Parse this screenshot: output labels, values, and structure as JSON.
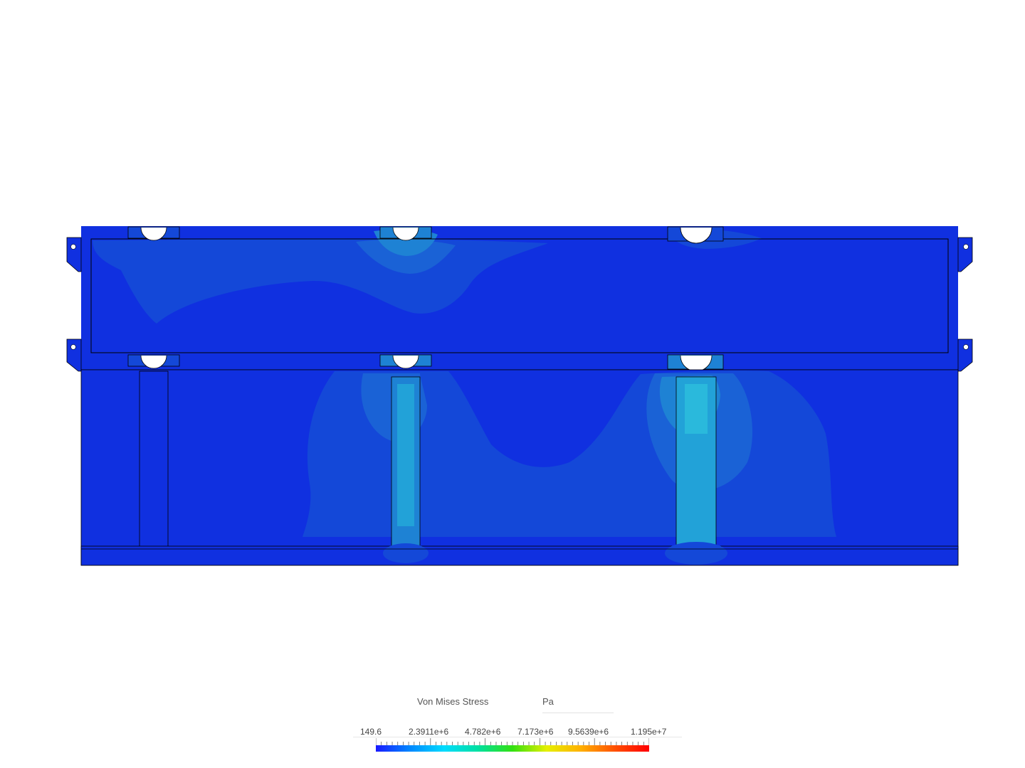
{
  "legend": {
    "quantity": "Von Mises Stress",
    "unit": "Pa",
    "tick_labels": [
      "149.6",
      "2.3911e+6",
      "4.782e+6",
      "7.173e+6",
      "9.5639e+6",
      "1.195e+7"
    ],
    "colors": [
      "#1a1aff",
      "#0088ff",
      "#00dcff",
      "#00e0a0",
      "#33e010",
      "#e6f000",
      "#ffb000",
      "#ff5000",
      "#ff0000"
    ]
  },
  "model": {
    "colors": {
      "base": "#1030e0",
      "level2": "#1448d8",
      "level3": "#1a62d6",
      "level4": "#1e82d4",
      "level5": "#22a2d8",
      "level6": "#30c8e0",
      "edge": "#000000"
    }
  }
}
